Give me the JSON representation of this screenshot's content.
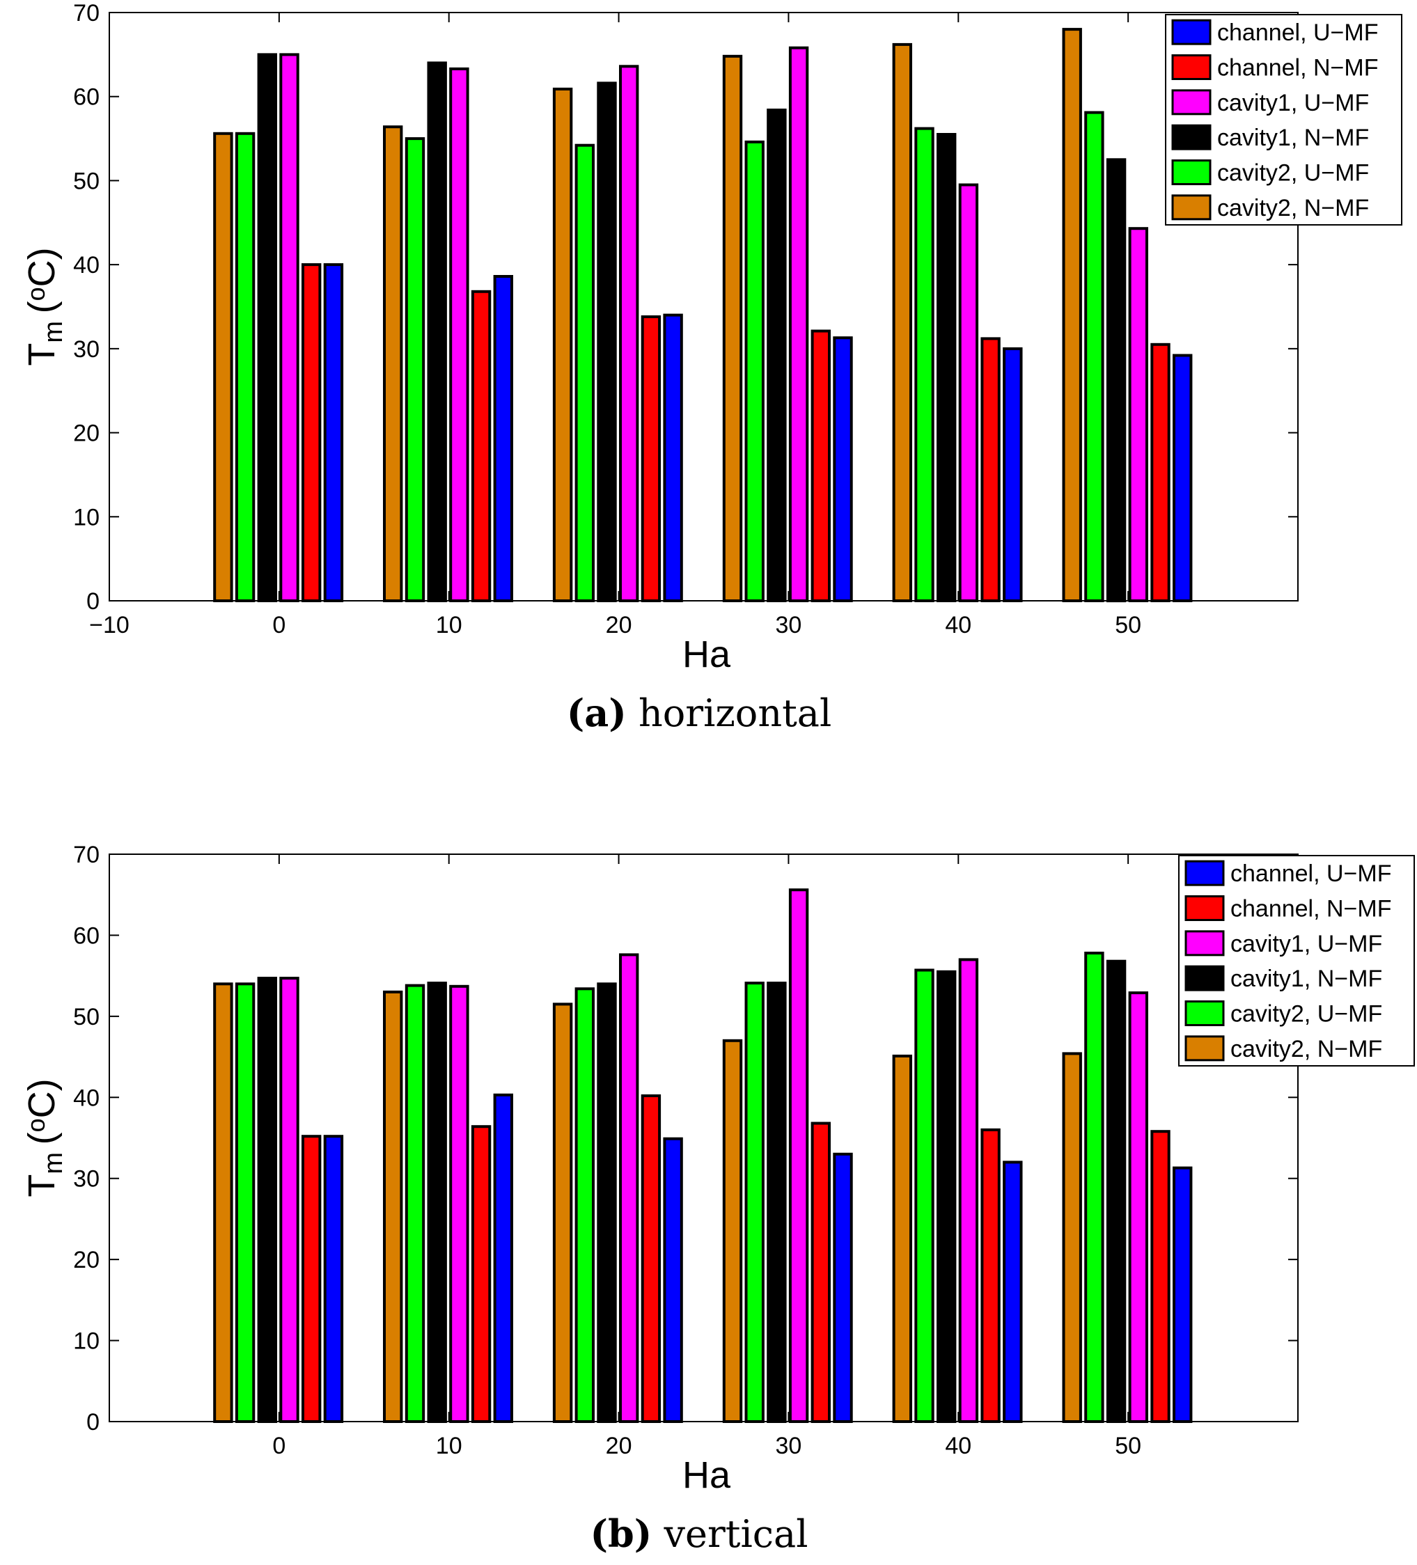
{
  "chart_data": [
    {
      "type": "bar",
      "caption_label": "(a)",
      "caption_text": "horizontal",
      "xlabel": "Ha",
      "ylabel": "T",
      "ylabel_sub": "m",
      "ylabel_sup": "o",
      "ylabel_unit_open": "(",
      "ylabel_unit_close": "C)",
      "xlim": [
        -10,
        60
      ],
      "ylim": [
        0,
        70
      ],
      "xticks": [
        -10,
        0,
        10,
        20,
        30,
        40,
        50
      ],
      "xtick_labels": [
        "−10",
        "0",
        "10",
        "20",
        "30",
        "40",
        "50"
      ],
      "yticks": [
        0,
        10,
        20,
        30,
        40,
        50,
        60,
        70
      ],
      "ytick_labels": [
        "0",
        "10",
        "20",
        "30",
        "40",
        "50",
        "60",
        "70"
      ],
      "categories": [
        0,
        10,
        20,
        30,
        40,
        50
      ],
      "legend_position": "top-right",
      "legend_order": [
        0,
        1,
        2,
        3,
        4,
        5
      ],
      "series": [
        {
          "name": "channel, U−MF",
          "color": "#0000ff",
          "values": [
            40.0,
            38.6,
            34.0,
            31.3,
            30.0,
            29.2
          ]
        },
        {
          "name": "channel, N−MF",
          "color": "#ff0000",
          "values": [
            40.0,
            36.8,
            33.8,
            32.1,
            31.2,
            30.5
          ]
        },
        {
          "name": "cavity1, U−MF",
          "color": "#ff00ff",
          "values": [
            65.0,
            63.3,
            63.6,
            65.8,
            49.5,
            44.3
          ]
        },
        {
          "name": "cavity1, N−MF",
          "color": "#000000",
          "values": [
            65.0,
            64.0,
            61.6,
            58.4,
            55.5,
            52.5
          ]
        },
        {
          "name": "cavity2, U−MF",
          "color": "#00ff00",
          "values": [
            55.6,
            55.0,
            54.2,
            54.6,
            56.2,
            58.1
          ]
        },
        {
          "name": "cavity2, N−MF",
          "color": "#d97f00",
          "values": [
            55.6,
            56.4,
            60.9,
            64.8,
            66.2,
            68.0
          ]
        }
      ]
    },
    {
      "type": "bar",
      "caption_label": "(b)",
      "caption_text": "vertical",
      "xlabel": "Ha",
      "ylabel": "T",
      "ylabel_sub": "m",
      "ylabel_sup": "o",
      "ylabel_unit_open": "(",
      "ylabel_unit_close": "C)",
      "xlim": [
        -10,
        60
      ],
      "ylim": [
        0,
        70
      ],
      "xticks": [
        0,
        10,
        20,
        30,
        40,
        50
      ],
      "xtick_labels": [
        "0",
        "10",
        "20",
        "30",
        "40",
        "50"
      ],
      "yticks": [
        0,
        10,
        20,
        30,
        40,
        50,
        60,
        70
      ],
      "ytick_labels": [
        "0",
        "10",
        "20",
        "30",
        "40",
        "50",
        "60",
        "70"
      ],
      "categories": [
        0,
        10,
        20,
        30,
        40,
        50
      ],
      "legend_position": "top-right",
      "legend_order": [
        0,
        1,
        2,
        3,
        4,
        5
      ],
      "series": [
        {
          "name": "channel, U−MF",
          "color": "#0000ff",
          "values": [
            35.2,
            40.3,
            34.9,
            33.0,
            32.0,
            31.3
          ]
        },
        {
          "name": "channel, N−MF",
          "color": "#ff0000",
          "values": [
            35.2,
            36.4,
            40.2,
            36.8,
            36.0,
            35.8
          ]
        },
        {
          "name": "cavity1, U−MF",
          "color": "#ff00ff",
          "values": [
            54.7,
            53.7,
            57.6,
            65.6,
            57.0,
            52.9
          ]
        },
        {
          "name": "cavity1, N−MF",
          "color": "#000000",
          "values": [
            54.7,
            54.1,
            54.0,
            54.1,
            55.5,
            56.8
          ]
        },
        {
          "name": "cavity2, U−MF",
          "color": "#00ff00",
          "values": [
            54.0,
            53.8,
            53.4,
            54.1,
            55.7,
            57.8
          ]
        },
        {
          "name": "cavity2, N−MF",
          "color": "#d97f00",
          "values": [
            54.0,
            53.0,
            51.5,
            47.0,
            45.1,
            45.4
          ]
        }
      ]
    }
  ]
}
